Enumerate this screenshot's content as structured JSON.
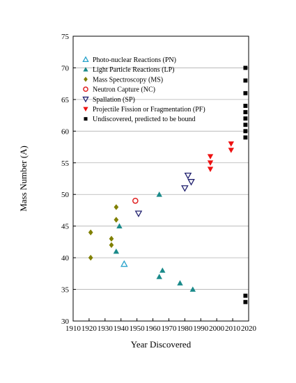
{
  "chart_data": {
    "type": "scatter",
    "title": "",
    "xlabel": "Year Discovered",
    "ylabel": "Mass Number (A)",
    "xlim": [
      1910,
      2020
    ],
    "ylim": [
      30,
      75
    ],
    "x_ticks": [
      1910,
      1920,
      1930,
      1940,
      1950,
      1960,
      1970,
      1980,
      1990,
      2000,
      2010,
      2020
    ],
    "y_ticks": [
      30,
      35,
      40,
      45,
      50,
      55,
      60,
      65,
      70,
      75
    ],
    "grid": "horizontal",
    "legend_position": "upper-left",
    "series": [
      {
        "name": "Photo-nuclear Reactions (PN)",
        "marker": "triangle-up-open",
        "color": "#29a3cc",
        "points": [
          [
            1942,
            39
          ]
        ]
      },
      {
        "name": "Light Particle Reactions (LP)",
        "marker": "triangle-up-filled",
        "color": "#1a8a8a",
        "points": [
          [
            1937,
            41
          ],
          [
            1939,
            45
          ],
          [
            1964,
            50
          ],
          [
            1964,
            37
          ],
          [
            1966,
            38
          ],
          [
            1977,
            36
          ],
          [
            1985,
            35
          ]
        ]
      },
      {
        "name": "Mass Spectroscopy (MS)",
        "marker": "diamond-filled",
        "color": "#808000",
        "points": [
          [
            1921,
            44
          ],
          [
            1921,
            40
          ],
          [
            1934,
            43
          ],
          [
            1934,
            42
          ],
          [
            1937,
            48
          ],
          [
            1937,
            46
          ]
        ]
      },
      {
        "name": "Neutron Capture (NC)",
        "marker": "circle-open",
        "color": "#e02020",
        "points": [
          [
            1949,
            49
          ]
        ]
      },
      {
        "name": "Spallation (SP)",
        "marker": "triangle-down-open",
        "color": "#20206e",
        "points": [
          [
            1951,
            47
          ],
          [
            1980,
            51
          ],
          [
            1982,
            53
          ],
          [
            1984,
            52
          ]
        ]
      },
      {
        "name": "Projectile Fission or Fragmentation (PF)",
        "marker": "triangle-down-filled",
        "color": "#ee1111",
        "points": [
          [
            1996,
            56
          ],
          [
            1996,
            55
          ],
          [
            1996,
            54
          ],
          [
            2009,
            58
          ],
          [
            2009,
            57
          ]
        ]
      },
      {
        "name": "Undiscovered, predicted to be bound",
        "marker": "square-filled",
        "color": "#000000",
        "points": [
          [
            2018,
            70
          ],
          [
            2018,
            68
          ],
          [
            2018,
            66
          ],
          [
            2018,
            64
          ],
          [
            2018,
            63
          ],
          [
            2018,
            62
          ],
          [
            2018,
            61
          ],
          [
            2018,
            60
          ],
          [
            2018,
            59
          ],
          [
            2018,
            34
          ],
          [
            2018,
            33
          ]
        ]
      }
    ]
  }
}
